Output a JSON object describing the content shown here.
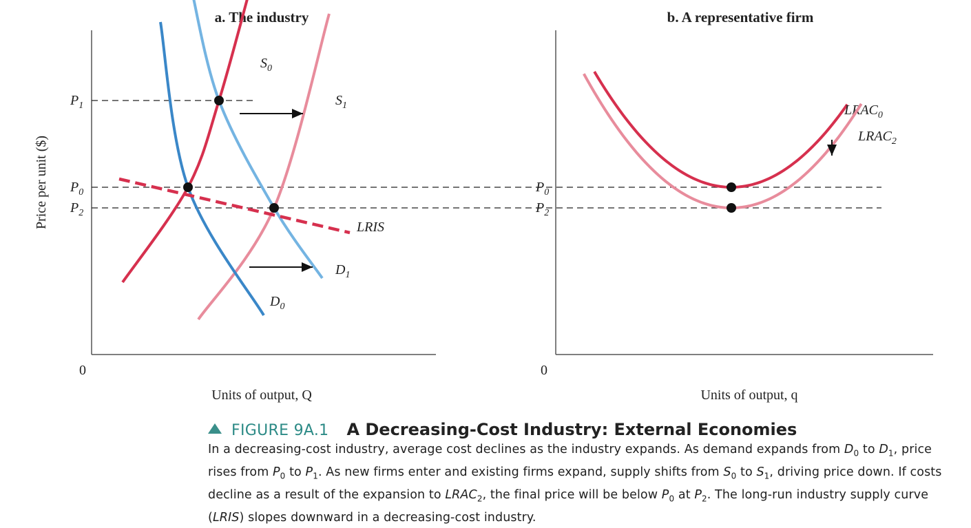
{
  "chart_data": [
    {
      "type": "line",
      "title": "a. The industry",
      "ylabel": "Price per unit ($)",
      "xlabel": "Units of output, Q",
      "x_origin_label": "0",
      "price_ticks": [
        {
          "name": "P",
          "sub": "1",
          "value": 3.25
        },
        {
          "name": "P",
          "sub": "0",
          "value": 2.2
        },
        {
          "name": "P",
          "sub": "2",
          "value": 1.95
        }
      ],
      "xlim": [
        0,
        10
      ],
      "ylim": [
        0,
        5
      ],
      "series": [
        {
          "name": "S",
          "sub": "0",
          "color": "#d6304e",
          "points": [
            [
              0.9,
              1.05
            ],
            [
              2.8,
              2.2
            ],
            [
              3.7,
              3.25
            ],
            [
              4.6,
              4.6
            ]
          ]
        },
        {
          "name": "S",
          "sub": "1",
          "color": "#e88c9c",
          "points": [
            [
              3.1,
              0.6
            ],
            [
              5.3,
              1.95
            ],
            [
              6.9,
              4.3
            ]
          ]
        },
        {
          "name": "D",
          "sub": "0",
          "color": "#3a87c8",
          "points": [
            [
              2.0,
              4.2
            ],
            [
              2.8,
              2.2
            ],
            [
              5.0,
              0.65
            ]
          ]
        },
        {
          "name": "D",
          "sub": "1",
          "color": "#74b4e2",
          "points": [
            [
              2.9,
              4.6
            ],
            [
              3.7,
              3.25
            ],
            [
              5.3,
              1.95
            ],
            [
              6.7,
              1.1
            ]
          ]
        },
        {
          "name": "LRIS",
          "sub": "",
          "color": "#d6304e",
          "dashed": true,
          "points": [
            [
              0.8,
              2.3
            ],
            [
              7.5,
              1.65
            ]
          ]
        }
      ],
      "equilibria": [
        [
          2.8,
          2.2
        ],
        [
          3.7,
          3.25
        ],
        [
          5.3,
          1.95
        ]
      ]
    },
    {
      "type": "line",
      "title": "b. A representative firm",
      "xlabel": "Units of output, q",
      "x_origin_label": "0",
      "price_ticks": [
        {
          "name": "P",
          "sub": "0",
          "value": 2.2
        },
        {
          "name": "P",
          "sub": "2",
          "value": 1.95
        }
      ],
      "xlim": [
        0,
        10
      ],
      "ylim": [
        0,
        5
      ],
      "series": [
        {
          "name": "LRAC",
          "sub": "0",
          "color": "#d6304e",
          "vertex": [
            5.0,
            2.2
          ],
          "x_range": [
            1.1,
            8.3
          ]
        },
        {
          "name": "LRAC",
          "sub": "2",
          "color": "#e88c9c",
          "vertex": [
            5.0,
            1.95
          ],
          "x_range": [
            0.8,
            8.7
          ]
        }
      ],
      "minimum_points": [
        [
          5.0,
          2.2
        ],
        [
          5.0,
          1.95
        ]
      ]
    }
  ],
  "caption": {
    "figure_number": "FIGURE 9A.1",
    "title": "A Decreasing-Cost Industry: External Economies",
    "body_html": "In a decreasing-cost industry, average cost declines as the industry expands. As demand expands from <i>D</i><sub>0</sub> to <i>D</i><sub>1</sub>, price rises from <i>P</i><sub>0</sub> to <i>P</i><sub>1</sub>. As new firms enter and existing firms expand, supply shifts from <i>S</i><sub>0</sub> to <i>S</i><sub>1</sub>, driving price down. If costs decline as a result of the expansion to <i>LRAC</i><sub>2</sub>, the final price will be below <i>P</i><sub>0</sub> at <i>P</i><sub>2</sub>. The long-run industry supply curve (<i>LRIS</i>) slopes downward in a decreasing-cost industry."
  }
}
